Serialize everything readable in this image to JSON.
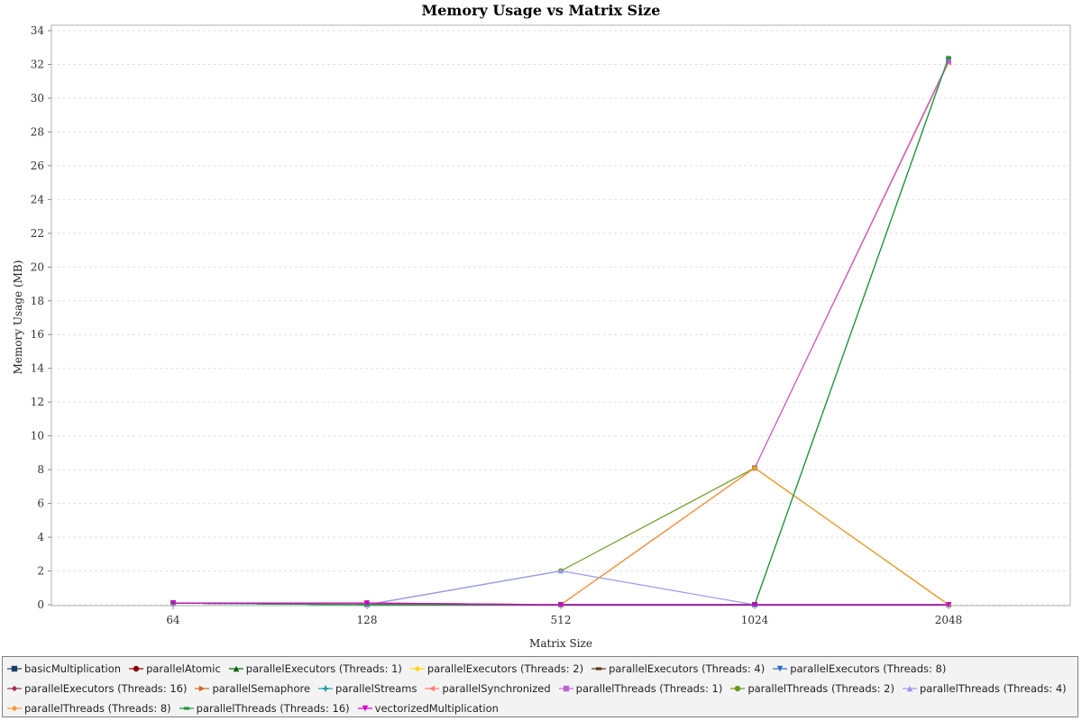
{
  "chart_data": {
    "type": "line",
    "title": "Memory Usage vs Matrix Size",
    "xlabel": "Matrix Size",
    "ylabel": "Memory Usage (MB)",
    "categories": [
      "64",
      "128",
      "512",
      "1024",
      "2048"
    ],
    "ylim": [
      0,
      34
    ],
    "yticks": [
      0,
      2,
      4,
      6,
      8,
      10,
      12,
      14,
      16,
      18,
      20,
      22,
      24,
      26,
      28,
      30,
      32,
      34
    ],
    "grid": true,
    "legend_position": "bottom",
    "series": [
      {
        "name": "basicMultiplication",
        "color": "#1f3c66",
        "marker": "square",
        "values": [
          0.1,
          0.0,
          0.0,
          0.0,
          0.0
        ]
      },
      {
        "name": "parallelAtomic",
        "color": "#8b0000",
        "marker": "circle",
        "values": [
          0.1,
          0.0,
          0.0,
          0.0,
          0.0
        ]
      },
      {
        "name": "parallelExecutors (Threads: 1)",
        "color": "#006400",
        "marker": "triangle-up",
        "values": [
          0.1,
          0.0,
          0.0,
          0.0,
          32.4
        ]
      },
      {
        "name": "parallelExecutors (Threads: 2)",
        "color": "#ffd700",
        "marker": "diamond",
        "values": [
          0.1,
          0.1,
          0.0,
          0.0,
          0.0
        ]
      },
      {
        "name": "parallelExecutors (Threads: 4)",
        "color": "#5a3a10",
        "marker": "square-h",
        "values": [
          0.1,
          0.0,
          0.0,
          0.0,
          0.0
        ]
      },
      {
        "name": "parallelExecutors (Threads: 8)",
        "color": "#2a6bbf",
        "marker": "triangle-down",
        "values": [
          0.1,
          0.0,
          0.0,
          0.0,
          0.0
        ]
      },
      {
        "name": "parallelExecutors (Threads: 16)",
        "color": "#a0304a",
        "marker": "diamond",
        "values": [
          0.1,
          0.0,
          0.0,
          0.0,
          0.0
        ]
      },
      {
        "name": "parallelSemaphore",
        "color": "#d2691e",
        "marker": "triangle-right",
        "values": [
          0.1,
          0.1,
          0.0,
          8.1,
          0.0
        ]
      },
      {
        "name": "parallelStreams",
        "color": "#20a0a0",
        "marker": "plus",
        "values": [
          0.1,
          0.0,
          0.0,
          0.0,
          0.0
        ]
      },
      {
        "name": "parallelSynchronized",
        "color": "#ff7f6a",
        "marker": "triangle-left",
        "values": [
          0.1,
          0.0,
          0.0,
          8.1,
          32.1
        ]
      },
      {
        "name": "parallelThreads (Threads: 1)",
        "color": "#c060d8",
        "marker": "square",
        "values": [
          0.1,
          0.0,
          0.0,
          8.1,
          32.2
        ]
      },
      {
        "name": "parallelThreads (Threads: 2)",
        "color": "#6b9b1e",
        "marker": "circle",
        "values": [
          0.1,
          0.0,
          2.0,
          8.1,
          0.0
        ]
      },
      {
        "name": "parallelThreads (Threads: 4)",
        "color": "#9999ee",
        "marker": "triangle-up",
        "values": [
          0.1,
          0.0,
          2.0,
          0.0,
          0.0
        ]
      },
      {
        "name": "parallelThreads (Threads: 8)",
        "color": "#f0a030",
        "marker": "diamond",
        "values": [
          0.1,
          0.1,
          0.0,
          8.1,
          0.0
        ]
      },
      {
        "name": "parallelThreads (Threads: 16)",
        "color": "#1a9a40",
        "marker": "square-h",
        "values": [
          0.1,
          0.0,
          0.0,
          0.0,
          32.4
        ]
      },
      {
        "name": "vectorizedMultiplication",
        "color": "#cc00cc",
        "marker": "triangle-down",
        "values": [
          0.1,
          0.1,
          0.0,
          0.0,
          0.0
        ]
      }
    ]
  }
}
